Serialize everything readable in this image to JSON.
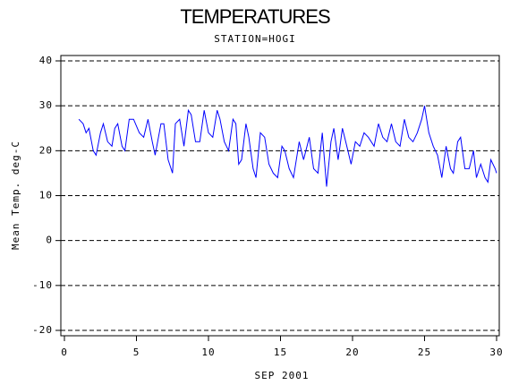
{
  "chart_data": {
    "type": "line",
    "title": "TEMPERATURES",
    "subtitle": "STATION=HOGI",
    "x_label": "SEP 2001",
    "y_label": "Mean Temp. deg-C",
    "xlim": [
      0,
      30
    ],
    "xticks": [
      0,
      5,
      10,
      15,
      20,
      25,
      30
    ],
    "ylim": [
      -20,
      40
    ],
    "yticks": [
      -20,
      -10,
      0,
      10,
      20,
      30,
      40
    ],
    "grid": true,
    "series": [
      {
        "name": "Mean Temp",
        "color": "#0000ff",
        "x": [
          1,
          1.3,
          1.5,
          1.7,
          2.0,
          2.2,
          2.5,
          2.7,
          3.0,
          3.3,
          3.5,
          3.7,
          4.0,
          4.2,
          4.5,
          4.8,
          5.2,
          5.5,
          5.8,
          6.1,
          6.3,
          6.7,
          6.9,
          7.2,
          7.5,
          7.7,
          8.0,
          8.3,
          8.6,
          8.8,
          9.1,
          9.4,
          9.7,
          10.0,
          10.3,
          10.6,
          10.8,
          11.1,
          11.4,
          11.7,
          11.9,
          12.1,
          12.3,
          12.6,
          12.8,
          13.1,
          13.3,
          13.6,
          13.9,
          14.2,
          14.5,
          14.8,
          15.1,
          15.3,
          15.6,
          15.9,
          16.3,
          16.6,
          17.0,
          17.3,
          17.6,
          17.9,
          18.2,
          18.5,
          18.7,
          19.0,
          19.3,
          19.6,
          19.9,
          20.2,
          20.5,
          20.8,
          21.1,
          21.5,
          21.8,
          22.1,
          22.4,
          22.7,
          23.0,
          23.3,
          23.6,
          23.9,
          24.2,
          24.5,
          24.8,
          25.0,
          25.3,
          25.6,
          25.9,
          26.2,
          26.5,
          26.8,
          27.0,
          27.3,
          27.5,
          27.8,
          28.1,
          28.4,
          28.6,
          28.9,
          29.2,
          29.4,
          29.6,
          29.9,
          30.0
        ],
        "values": [
          27,
          26,
          24,
          25,
          20,
          19,
          24,
          26,
          22,
          21,
          25,
          26,
          21,
          20,
          27,
          27,
          24,
          23,
          27,
          22,
          19,
          26,
          26,
          18,
          15,
          26,
          27,
          21,
          29,
          28,
          22,
          22,
          29,
          24,
          23,
          29,
          27,
          22,
          20,
          27,
          26,
          17,
          18,
          26,
          23,
          16,
          14,
          24,
          23,
          17,
          15,
          14,
          21,
          20,
          16,
          14,
          22,
          18,
          23,
          16,
          15,
          24,
          12,
          22,
          25,
          18,
          25,
          21,
          17,
          22,
          21,
          24,
          23,
          21,
          26,
          23,
          22,
          26,
          22,
          21,
          27,
          23,
          22,
          24,
          27,
          30,
          24,
          21,
          19,
          14,
          21,
          16,
          15,
          22,
          23,
          16,
          16,
          20,
          14,
          17,
          14,
          13,
          18,
          16,
          15
        ]
      }
    ]
  }
}
